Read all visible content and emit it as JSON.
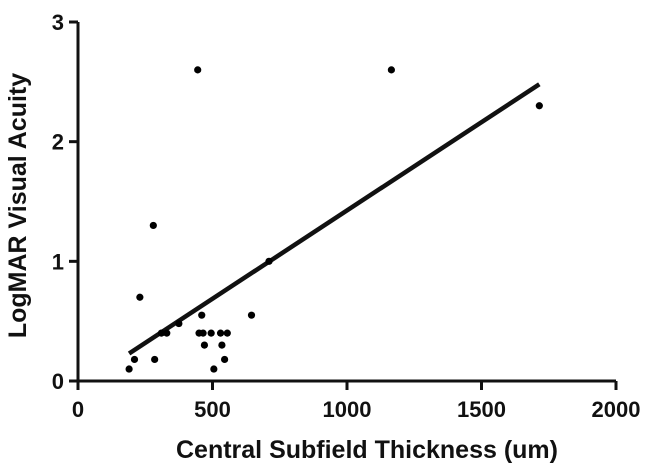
{
  "chart_data": {
    "type": "scatter",
    "xlabel": "Central Subfield Thickness (um)",
    "ylabel": "LogMAR Visual Acuity",
    "xlim": [
      0,
      2000
    ],
    "ylim": [
      0,
      3
    ],
    "x_ticks": [
      0,
      500,
      1000,
      1500,
      2000
    ],
    "y_ticks": [
      0,
      1,
      2,
      3
    ],
    "grid": false,
    "points": [
      {
        "x": 190,
        "y": 0.1
      },
      {
        "x": 210,
        "y": 0.18
      },
      {
        "x": 230,
        "y": 0.7
      },
      {
        "x": 280,
        "y": 1.3
      },
      {
        "x": 285,
        "y": 0.18
      },
      {
        "x": 310,
        "y": 0.4
      },
      {
        "x": 330,
        "y": 0.4
      },
      {
        "x": 375,
        "y": 0.48
      },
      {
        "x": 445,
        "y": 2.6
      },
      {
        "x": 450,
        "y": 0.4
      },
      {
        "x": 460,
        "y": 0.55
      },
      {
        "x": 465,
        "y": 0.4
      },
      {
        "x": 470,
        "y": 0.3
      },
      {
        "x": 495,
        "y": 0.4
      },
      {
        "x": 505,
        "y": 0.1
      },
      {
        "x": 530,
        "y": 0.4
      },
      {
        "x": 535,
        "y": 0.3
      },
      {
        "x": 545,
        "y": 0.18
      },
      {
        "x": 555,
        "y": 0.4
      },
      {
        "x": 645,
        "y": 0.55
      },
      {
        "x": 710,
        "y": 1.0
      },
      {
        "x": 1165,
        "y": 2.6
      },
      {
        "x": 1715,
        "y": 2.3
      }
    ],
    "fit_line": {
      "x": [
        190,
        1715
      ],
      "y": [
        0.23,
        2.48
      ]
    }
  }
}
